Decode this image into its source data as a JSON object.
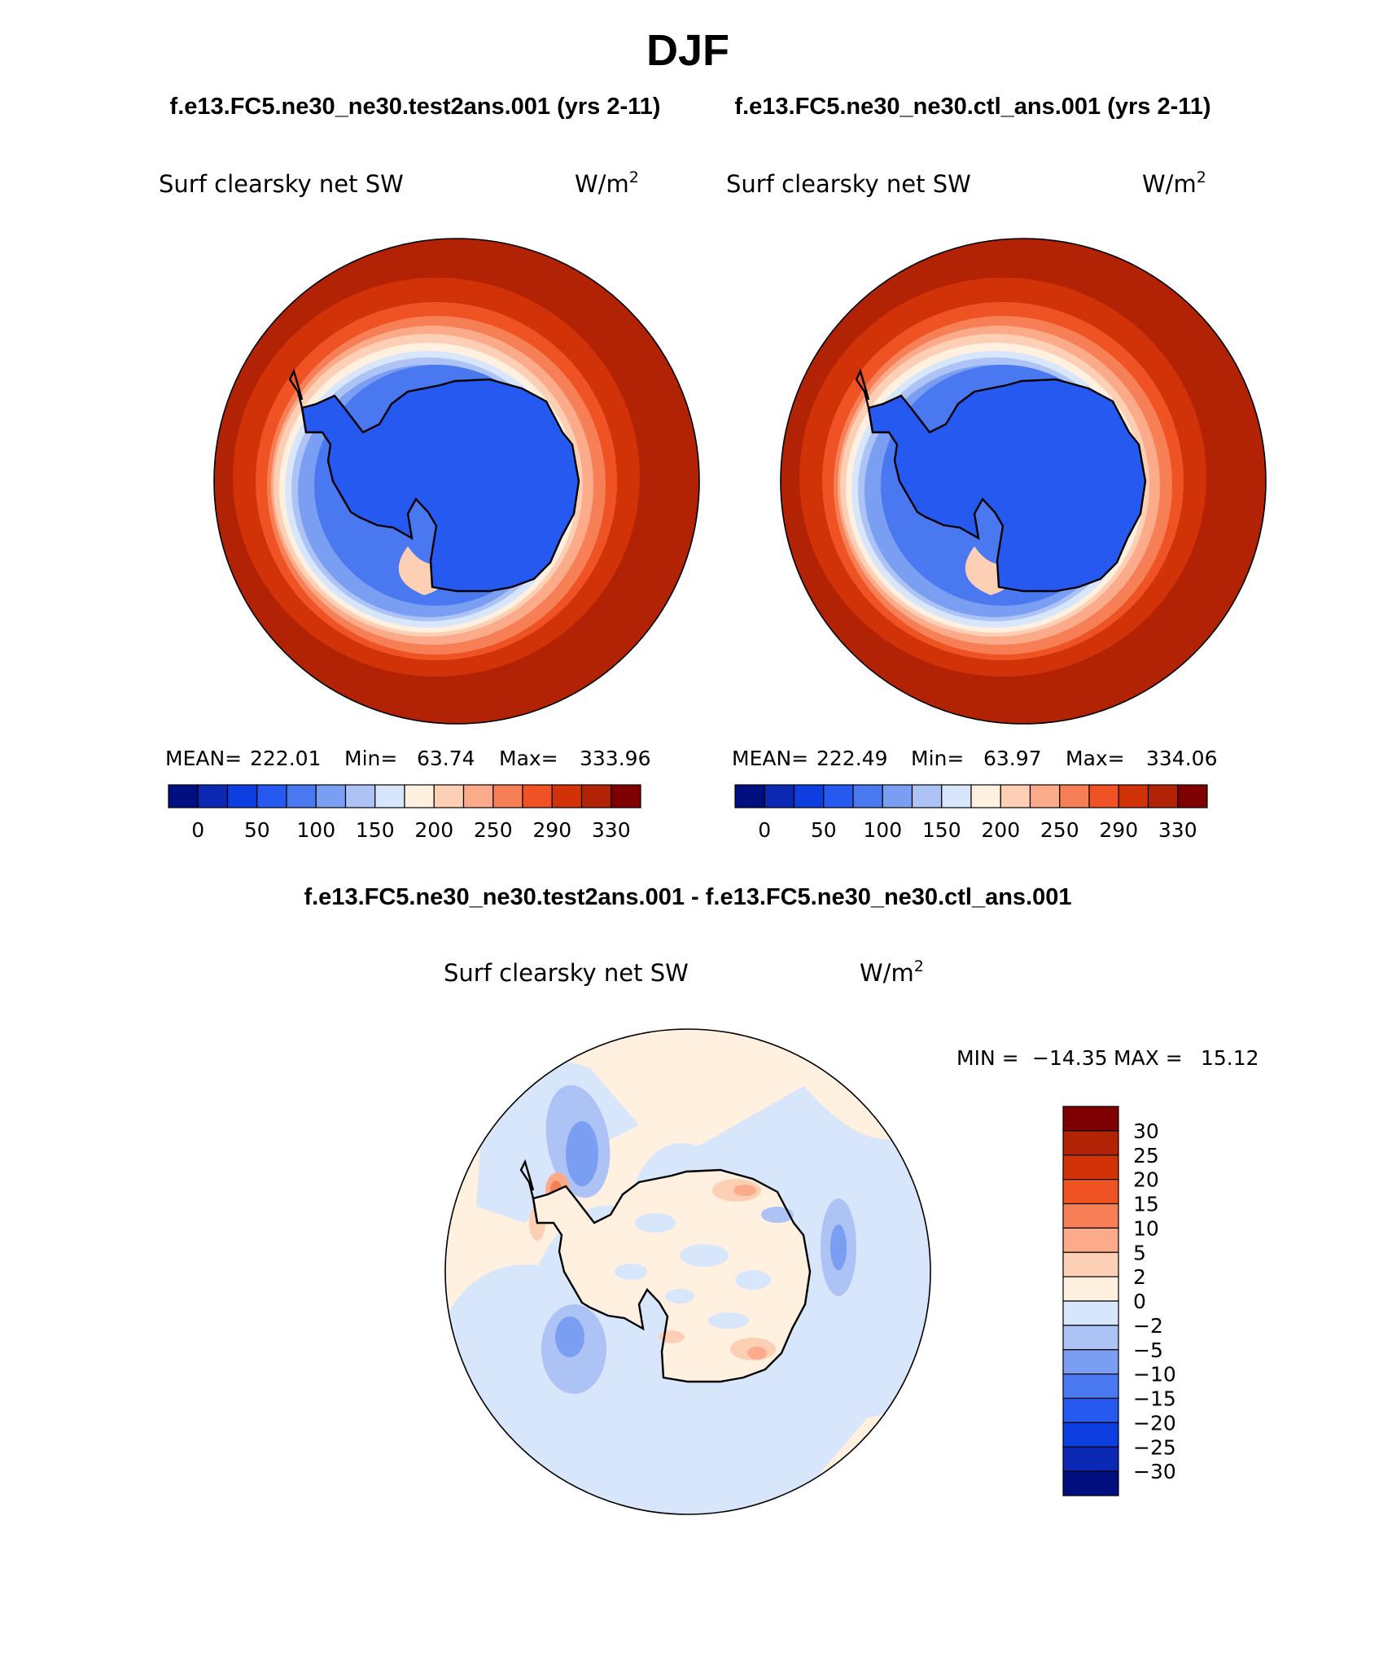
{
  "figure": {
    "season_title": "DJF",
    "top_left_header": "f.e13.FC5.ne30_ne30.test2ans.001 (yrs 2-11)",
    "top_right_header": "f.e13.FC5.ne30_ne30.ctl_ans.001 (yrs 2-11)",
    "diff_header": "f.e13.FC5.ne30_ne30.test2ans.001 - f.e13.FC5.ne30_ne30.ctl_ans.001"
  },
  "chart_data": [
    {
      "type": "heatmap",
      "projection": "south-polar-stereographic",
      "title": "Surf clearsky net SW",
      "units": "W/m",
      "units_superscript": "2",
      "stats": {
        "mean_label": "MEAN=",
        "mean": "222.01",
        "min_label": "Min=",
        "min": "63.74",
        "max_label": "Max=",
        "max": "333.96"
      },
      "colorbar": {
        "orientation": "horizontal",
        "levels": [
          0,
          25,
          50,
          75,
          100,
          125,
          150,
          175,
          200,
          225,
          250,
          270,
          290,
          310,
          330
        ],
        "tick_labels": [
          "0",
          "50",
          "100",
          "150",
          "200",
          "250",
          "290",
          "330"
        ],
        "colors": [
          "#000f7f",
          "#0a28b4",
          "#0d3ee0",
          "#2659f0",
          "#4a78f0",
          "#7a9ef2",
          "#adc3f6",
          "#d8e6fb",
          "#fff0e0",
          "#fdd0b6",
          "#fbab8a",
          "#f77f55",
          "#ef5323",
          "#d23208",
          "#b12304",
          "#7f0000"
        ]
      },
      "field": {
        "land_region": "Antarctica",
        "land_range": "63-100",
        "ocean_range": "290-334"
      }
    },
    {
      "type": "heatmap",
      "projection": "south-polar-stereographic",
      "title": "Surf clearsky net SW",
      "units": "W/m",
      "units_superscript": "2",
      "stats": {
        "mean_label": "MEAN=",
        "mean": "222.49",
        "min_label": "Min=",
        "min": "63.97",
        "max_label": "Max=",
        "max": "334.06"
      },
      "colorbar": {
        "orientation": "horizontal",
        "levels": [
          0,
          25,
          50,
          75,
          100,
          125,
          150,
          175,
          200,
          225,
          250,
          270,
          290,
          310,
          330
        ],
        "tick_labels": [
          "0",
          "50",
          "100",
          "150",
          "200",
          "250",
          "290",
          "330"
        ],
        "colors": [
          "#000f7f",
          "#0a28b4",
          "#0d3ee0",
          "#2659f0",
          "#4a78f0",
          "#7a9ef2",
          "#adc3f6",
          "#d8e6fb",
          "#fff0e0",
          "#fdd0b6",
          "#fbab8a",
          "#f77f55",
          "#ef5323",
          "#d23208",
          "#b12304",
          "#7f0000"
        ]
      },
      "field": {
        "land_region": "Antarctica",
        "land_range": "63-100",
        "ocean_range": "290-334"
      }
    },
    {
      "type": "heatmap",
      "projection": "south-polar-stereographic",
      "title": "Surf clearsky net SW",
      "units": "W/m",
      "units_superscript": "2",
      "stats": {
        "min_label": "MIN =",
        "min": "−14.35",
        "max_label": "MAX =",
        "max": "15.12"
      },
      "colorbar": {
        "orientation": "vertical",
        "levels": [
          30,
          25,
          20,
          15,
          10,
          5,
          2,
          0,
          -2,
          -5,
          -10,
          -15,
          -20,
          -25,
          -30
        ],
        "tick_labels": [
          "30",
          "25",
          "20",
          "15",
          "10",
          "5",
          "2",
          "0",
          "−2",
          "−5",
          "−10",
          "−15",
          "−20",
          "−25",
          "−30"
        ],
        "colors_top_to_bottom": [
          "#7f0000",
          "#b12304",
          "#d23208",
          "#ef5323",
          "#f77f55",
          "#fbab8a",
          "#fdd0b6",
          "#fff0e0",
          "#d8e6fb",
          "#adc3f6",
          "#7a9ef2",
          "#4a78f0",
          "#2659f0",
          "#0d3ee0",
          "#0a28b4",
          "#000f7f"
        ]
      }
    }
  ]
}
